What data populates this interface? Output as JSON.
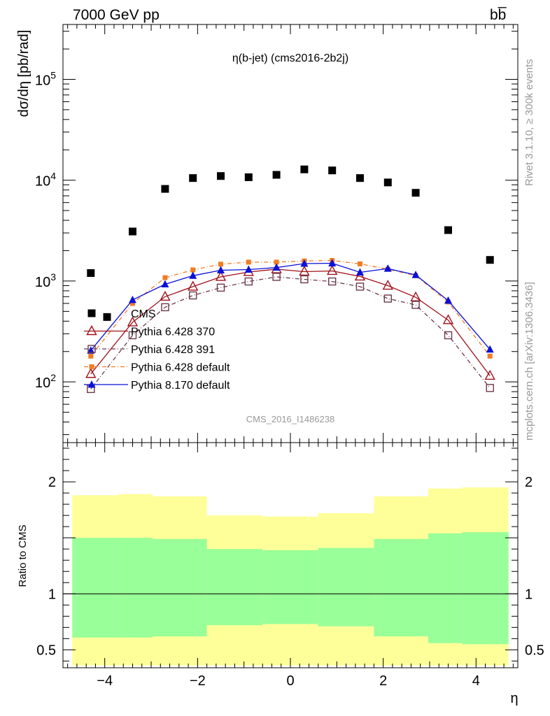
{
  "header": {
    "left": "7000 GeV pp",
    "right": "bb̅"
  },
  "side": {
    "rivet": "Rivet 3.1.10, ≥ 300k events",
    "mcplots": "mcplots.cern.ch [arXiv:1306.3436]"
  },
  "watermark": "CMS_2016_I1486238",
  "chart_data": [
    {
      "type": "scatter",
      "title": "η(b-jet) (cms2016-2b2j)",
      "ylabel": "dσ/dη [pb/rad]",
      "xlabel": "η",
      "yscale": "log",
      "xlim": [
        -4.9,
        4.9
      ],
      "ylim": [
        25,
        350000
      ],
      "y_ticks": [
        {
          "value": 100,
          "base": "10",
          "exp": "2"
        },
        {
          "value": 1000,
          "base": "10",
          "exp": "3"
        },
        {
          "value": 10000,
          "base": "10",
          "exp": "4"
        },
        {
          "value": 100000,
          "base": "10",
          "exp": "5"
        }
      ],
      "legend": "lower-left",
      "series": [
        {
          "name": "CMS",
          "color": "#000000",
          "marker": "square-filled",
          "x": [
            -4.3,
            -3.95,
            -3.4,
            -2.7,
            -2.1,
            -1.5,
            -0.9,
            -0.3,
            0.3,
            0.9,
            1.5,
            2.1,
            2.7,
            3.4,
            4.3
          ],
          "y": [
            1200,
            440,
            3100,
            8200,
            10500,
            11000,
            10700,
            11300,
            12800,
            12500,
            10500,
            9500,
            7500,
            3200,
            1620
          ]
        },
        {
          "name": "Pythia 6.428 370",
          "color": "#a0101a",
          "marker": "triangle-open",
          "dash": "",
          "x": [
            -4.3,
            -3.4,
            -2.7,
            -2.1,
            -1.5,
            -0.9,
            -0.3,
            0.3,
            0.9,
            1.5,
            2.1,
            2.7,
            3.4,
            4.3
          ],
          "y": [
            120,
            390,
            700,
            880,
            1100,
            1230,
            1310,
            1240,
            1260,
            1110,
            900,
            690,
            410,
            115
          ]
        },
        {
          "name": "Pythia 6.428 391",
          "color": "#6b3a4a",
          "marker": "square-open",
          "dash": "6,3,1,3",
          "x": [
            -4.3,
            -3.4,
            -2.7,
            -2.1,
            -1.5,
            -0.9,
            -0.3,
            0.3,
            0.9,
            1.5,
            2.1,
            2.7,
            3.4,
            4.3
          ],
          "y": [
            85,
            290,
            550,
            720,
            860,
            990,
            1100,
            1040,
            990,
            880,
            670,
            580,
            290,
            87
          ]
        },
        {
          "name": "Pythia 6.428 default",
          "color": "#f07d25",
          "marker": "square-filled-small",
          "dash": "6,3,1,3",
          "x": [
            -4.3,
            -3.4,
            -2.7,
            -2.1,
            -1.5,
            -0.9,
            -0.3,
            0.3,
            0.9,
            1.5,
            2.1,
            2.7,
            3.4,
            4.3
          ],
          "y": [
            180,
            600,
            1080,
            1290,
            1470,
            1540,
            1540,
            1580,
            1600,
            1480,
            1310,
            1130,
            620,
            180
          ]
        },
        {
          "name": "Pythia 8.170 default",
          "color": "#0a10d8",
          "marker": "triangle-filled",
          "dash": "",
          "x": [
            -4.3,
            -3.4,
            -2.7,
            -2.1,
            -1.5,
            -0.9,
            -0.3,
            0.3,
            0.9,
            1.5,
            2.1,
            2.7,
            3.4,
            4.3
          ],
          "y": [
            205,
            650,
            930,
            1130,
            1280,
            1300,
            1360,
            1490,
            1500,
            1220,
            1330,
            1150,
            640,
            210
          ]
        }
      ]
    },
    {
      "type": "area",
      "ylabel": "Ratio to CMS",
      "xlabel": "η",
      "xlim": [
        -4.9,
        4.9
      ],
      "ylim": [
        0.34,
        2.35
      ],
      "x_ticks": [
        {
          "value": -4,
          "label": "−4"
        },
        {
          "value": -2,
          "label": "−2"
        },
        {
          "value": 0,
          "label": "0"
        },
        {
          "value": 2,
          "label": "2"
        },
        {
          "value": 4,
          "label": "4"
        }
      ],
      "y_ticks": [
        {
          "value": 0.5,
          "label": "0.5"
        },
        {
          "value": 1,
          "label": "1"
        },
        {
          "value": 2,
          "label": "2"
        }
      ],
      "reference_line": 1,
      "bands": {
        "edges": [
          -4.7,
          -3.7,
          -2.97,
          -2.1,
          -1.8,
          -0.6,
          0.6,
          1.8,
          2.1,
          2.97,
          3.7,
          4.7
        ],
        "bins": [
          {
            "x0": -4.7,
            "x1": -3.7,
            "yellow": [
              0.36,
              1.88
            ],
            "green": [
              0.61,
              1.5
            ]
          },
          {
            "x0": -3.7,
            "x1": -2.97,
            "yellow": [
              0.36,
              1.89
            ],
            "green": [
              0.61,
              1.5
            ]
          },
          {
            "x0": -2.97,
            "x1": -1.8,
            "yellow": [
              0.36,
              1.87
            ],
            "green": [
              0.62,
              1.49
            ]
          },
          {
            "x0": -1.8,
            "x1": -0.6,
            "yellow": [
              0.36,
              1.7
            ],
            "green": [
              0.72,
              1.4
            ]
          },
          {
            "x0": -0.6,
            "x1": 0.6,
            "yellow": [
              0.36,
              1.69
            ],
            "green": [
              0.73,
              1.39
            ]
          },
          {
            "x0": 0.6,
            "x1": 1.8,
            "yellow": [
              0.36,
              1.72
            ],
            "green": [
              0.71,
              1.41
            ]
          },
          {
            "x0": 1.8,
            "x1": 2.97,
            "yellow": [
              0.36,
              1.87
            ],
            "green": [
              0.62,
              1.49
            ]
          },
          {
            "x0": 2.97,
            "x1": 3.7,
            "yellow": [
              0.36,
              1.94
            ],
            "green": [
              0.56,
              1.54
            ]
          },
          {
            "x0": 3.7,
            "x1": 4.7,
            "yellow": [
              0.36,
              1.95
            ],
            "green": [
              0.55,
              1.55
            ]
          }
        ],
        "yellow_color": "#ffff99",
        "green_color": "#99ff99"
      }
    }
  ]
}
